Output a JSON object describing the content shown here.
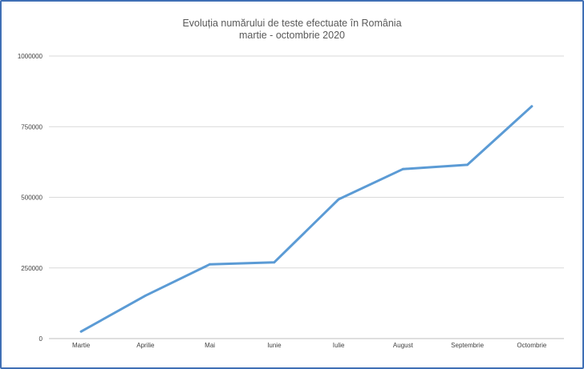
{
  "chart_data": {
    "type": "line",
    "title": "Evoluția numărului de teste efectuate în România",
    "subtitle": "martie - octombrie 2020",
    "xlabel": "",
    "ylabel": "",
    "categories": [
      "Martie",
      "Aprilie",
      "Mai",
      "Iunie",
      "Iulie",
      "August",
      "Septembrie",
      "Octombrie"
    ],
    "series": [
      {
        "values": [
          25000,
          152000,
          263000,
          270000,
          493000,
          600000,
          615000,
          822000
        ]
      }
    ],
    "ylim": [
      0,
      1000000
    ],
    "yticks": [
      0,
      250000,
      500000,
      750000,
      1000000
    ],
    "ytick_labels": [
      "0",
      "250000",
      "500000",
      "750000",
      "1000000"
    ],
    "grid": true,
    "colors": {
      "line": "#5b9bd5",
      "grid": "#d9d9d9",
      "frame": "#3f6fb5"
    }
  }
}
